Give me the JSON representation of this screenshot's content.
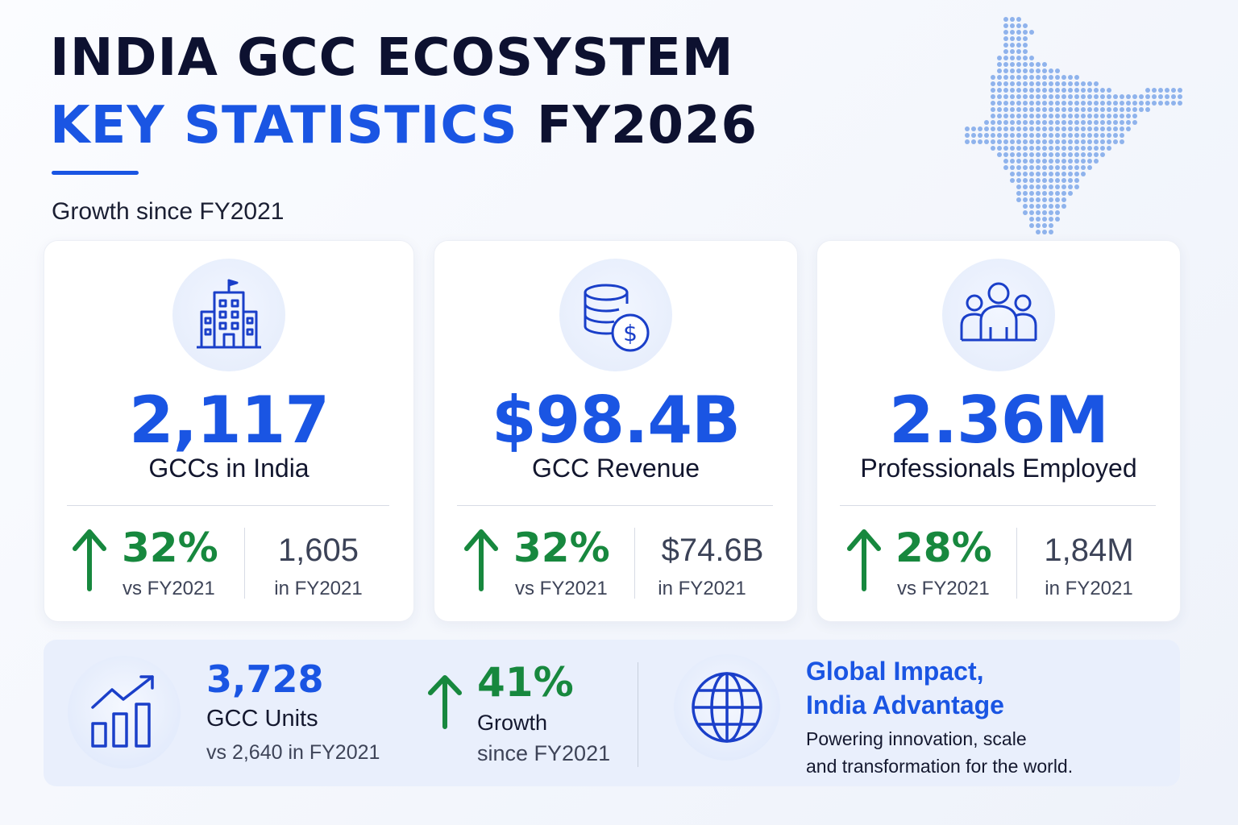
{
  "header": {
    "title_line1": "INDIA GCC ECOSYSTEM",
    "title_line2_blue": "KEY STATISTICS",
    "title_line2_dark": "FY2026",
    "subtitle": "Growth since FY2021"
  },
  "colors": {
    "accent_blue": "#1a55e3",
    "growth_green": "#17883e",
    "dark_text": "#0d1130"
  },
  "cards": [
    {
      "icon": "building-icon",
      "value": "2,117",
      "label": "GCCs in India",
      "growth": "32%",
      "growth_sub": "vs FY2021",
      "previous": "1,605",
      "previous_sub": "in FY2021"
    },
    {
      "icon": "coins-dollar-icon",
      "value": "$98.4B",
      "label": "GCC Revenue",
      "growth": "32%",
      "growth_sub": "vs FY2021",
      "previous": "$74.6B",
      "previous_sub": "in FY2021"
    },
    {
      "icon": "people-group-icon",
      "value": "2.36M",
      "label": "Professionals Employed",
      "growth": "28%",
      "growth_sub": "vs FY2021",
      "previous": "1,84M",
      "previous_sub": "in FY2021"
    }
  ],
  "bottom": {
    "units_icon": "bar-chart-growth-icon",
    "units_value": "3,728",
    "units_label": "GCC Units",
    "units_sub": "vs 2,640 in FY2021",
    "growth_value": "41%",
    "growth_label": "Growth",
    "growth_sub": "since FY2021",
    "impact_icon": "globe-icon",
    "impact_title_line1": "Global Impact,",
    "impact_title_line2": "India Advantage",
    "impact_desc_line1": "Powering innovation, scale",
    "impact_desc_line2": "and transformation for the world."
  }
}
